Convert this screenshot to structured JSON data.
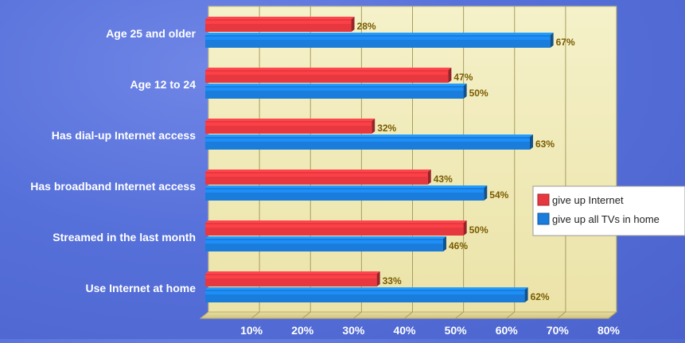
{
  "chart_data": {
    "type": "bar",
    "orientation": "horizontal",
    "categories": [
      "Age 25 and older",
      "Age 12 to 24",
      "Has dial-up Internet access",
      "Has broadband Internet access",
      "Streamed in the last month",
      "Use Internet at home"
    ],
    "series": [
      {
        "name": "give up Internet",
        "color": "#e8383f",
        "values": [
          28,
          47,
          32,
          43,
          50,
          33
        ]
      },
      {
        "name": "give up all TVs in home",
        "color": "#1a7ddb",
        "values": [
          67,
          50,
          63,
          54,
          46,
          62
        ]
      }
    ],
    "value_suffix": "%",
    "x_ticks": [
      "10%",
      "20%",
      "30%",
      "40%",
      "50%",
      "60%",
      "70%",
      "80%"
    ],
    "xlim": [
      0,
      80
    ],
    "grid": true,
    "legend_position": "right"
  }
}
